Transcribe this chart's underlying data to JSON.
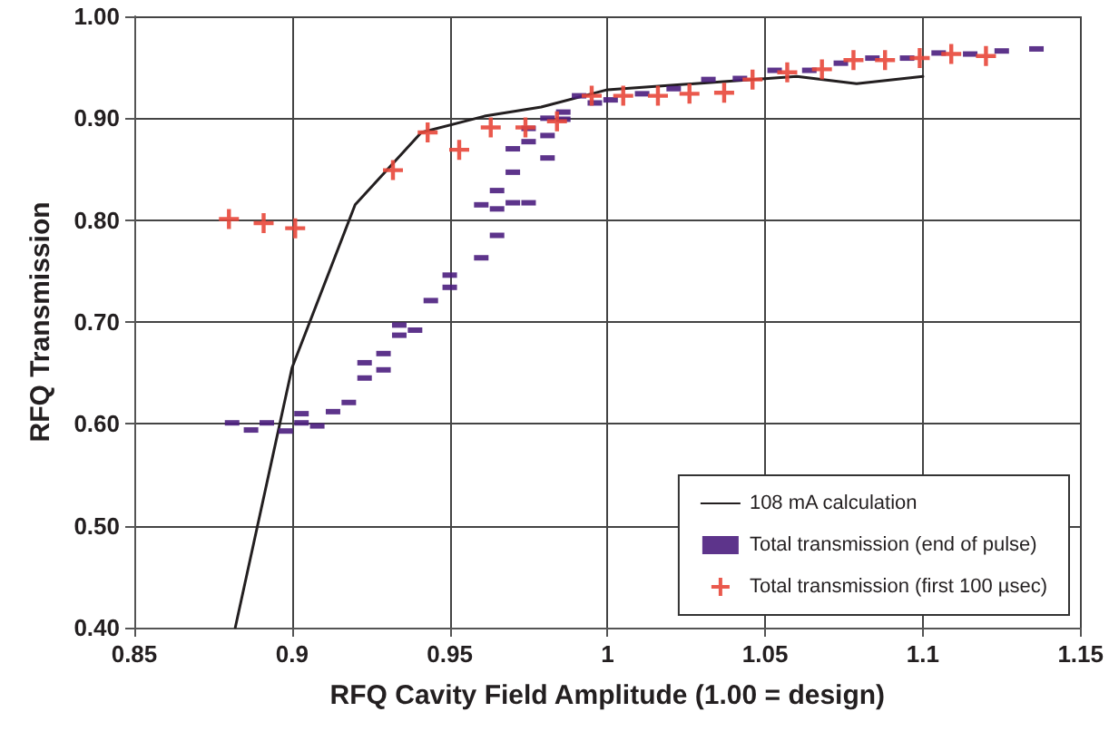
{
  "chart_data": {
    "type": "scatter",
    "xlabel": "RFQ Cavity Field Amplitude (1.00 = design)",
    "ylabel": "RFQ Transmission",
    "xlim": [
      0.85,
      1.15
    ],
    "xticks": [
      0.85,
      0.9,
      0.95,
      1,
      1.05,
      1.1,
      1.15
    ],
    "ylim": [
      0.4,
      1.0
    ],
    "yticks": [
      {
        "value": 0.4,
        "label": "0.40"
      },
      {
        "value": 0.5,
        "label": "0.50"
      },
      {
        "value": 0.6,
        "label": "0.60"
      },
      {
        "value": 0.7,
        "label": "0.70"
      },
      {
        "value": 0.8,
        "label": "0.80"
      },
      {
        "value": 0.9,
        "label": "0.90"
      },
      {
        "value": 1.0,
        "label": "1.00"
      }
    ],
    "grid": true,
    "legend": "bottom right",
    "series": [
      {
        "name": "108 mA calculation",
        "type": "line",
        "color": "#231f20",
        "marker": "none",
        "line_style": "solid",
        "x": [
          0.882,
          0.9,
          0.92,
          0.941,
          0.961,
          0.979,
          1.0,
          1.06,
          1.079,
          1.1
        ],
        "values": [
          0.4,
          0.655,
          0.815,
          0.886,
          0.902,
          0.911,
          0.928,
          0.941,
          0.934,
          0.941
        ]
      },
      {
        "name": "Total transmission (end of pulse)",
        "color": "#4b1e7e",
        "marker": "square",
        "x": [
          0.881,
          0.887,
          0.892,
          0.898,
          0.903,
          0.903,
          0.908,
          0.913,
          0.918,
          0.923,
          0.923,
          0.929,
          0.929,
          0.934,
          0.934,
          0.939,
          0.944,
          0.95,
          0.95,
          0.96,
          0.96,
          0.965,
          0.965,
          0.965,
          0.97,
          0.97,
          0.97,
          0.975,
          0.975,
          0.975,
          0.981,
          0.981,
          0.981,
          0.986,
          0.986,
          0.991,
          0.996,
          1.001,
          1.011,
          1.021,
          1.032,
          1.042,
          1.053,
          1.064,
          1.074,
          1.084,
          1.095,
          1.105,
          1.115,
          1.125,
          1.136
        ],
        "values": [
          0.601,
          0.594,
          0.601,
          0.593,
          0.61,
          0.601,
          0.598,
          0.612,
          0.621,
          0.66,
          0.645,
          0.669,
          0.653,
          0.687,
          0.697,
          0.692,
          0.721,
          0.746,
          0.734,
          0.763,
          0.815,
          0.785,
          0.811,
          0.829,
          0.847,
          0.87,
          0.817,
          0.817,
          0.877,
          0.89,
          0.883,
          0.861,
          0.9,
          0.906,
          0.899,
          0.922,
          0.915,
          0.918,
          0.924,
          0.929,
          0.938,
          0.939,
          0.947,
          0.947,
          0.954,
          0.959,
          0.959,
          0.964,
          0.963,
          0.966,
          0.968
        ]
      },
      {
        "name": "Total transmission (first 100 µsec)",
        "color": "#e8473a",
        "marker": "cross",
        "x": [
          0.88,
          0.891,
          0.901,
          0.932,
          0.943,
          0.953,
          0.963,
          0.974,
          0.984,
          0.995,
          1.005,
          1.016,
          1.026,
          1.037,
          1.046,
          1.057,
          1.068,
          1.078,
          1.088,
          1.099,
          1.109,
          1.12
        ],
        "values": [
          0.801,
          0.797,
          0.792,
          0.849,
          0.886,
          0.869,
          0.891,
          0.891,
          0.897,
          0.922,
          0.922,
          0.922,
          0.924,
          0.925,
          0.938,
          0.945,
          0.948,
          0.957,
          0.957,
          0.959,
          0.963,
          0.961
        ]
      }
    ]
  }
}
